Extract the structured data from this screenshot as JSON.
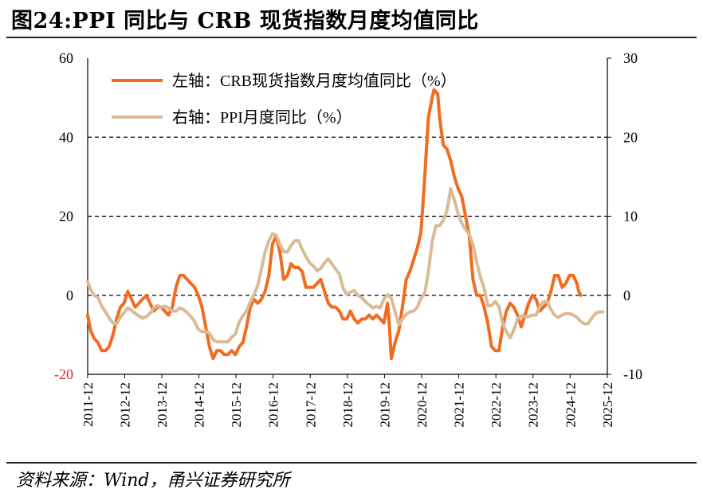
{
  "title": "图24:PPI 同比与 CRB 现货指数月度均值同比",
  "source": "资料来源：Wind，甬兴证券研究所",
  "colors": {
    "crb": "#F26B21",
    "ppi": "#D9BC97",
    "neg_tick": "#D9242B",
    "grid": "#000000"
  },
  "chart_data": {
    "type": "line",
    "title": "图24:PPI 同比与 CRB 现货指数月度均值同比",
    "x_ticks": [
      "2011-12",
      "2012-12",
      "2013-12",
      "2014-12",
      "2015-12",
      "2016-12",
      "2017-12",
      "2018-12",
      "2019-12",
      "2020-12",
      "2021-12",
      "2022-12",
      "2023-12",
      "2024-12",
      "2025-12"
    ],
    "y_left": {
      "min": -20,
      "max": 60,
      "ticks": [
        "60",
        "40",
        "20",
        "0",
        "-20"
      ]
    },
    "y_right": {
      "min": -10,
      "max": 30,
      "ticks": [
        "30",
        "20",
        "10",
        "0",
        "-10"
      ]
    },
    "grid": "dashed horizontal at left-axis 40, 20, 0",
    "legend_position": "top-left",
    "series": [
      {
        "name": "左轴：CRB现货指数月度均值同比（%）",
        "axis": "left",
        "color": "#F26B21",
        "points": [
          [
            2011.92,
            -5
          ],
          [
            2012.0,
            -9
          ],
          [
            2012.1,
            -11
          ],
          [
            2012.2,
            -12
          ],
          [
            2012.3,
            -14
          ],
          [
            2012.4,
            -14
          ],
          [
            2012.5,
            -13
          ],
          [
            2012.6,
            -10
          ],
          [
            2012.7,
            -6
          ],
          [
            2012.8,
            -3
          ],
          [
            2012.9,
            -2
          ],
          [
            2013.0,
            1
          ],
          [
            2013.1,
            -1
          ],
          [
            2013.2,
            -3
          ],
          [
            2013.3,
            -2
          ],
          [
            2013.4,
            -1
          ],
          [
            2013.5,
            0
          ],
          [
            2013.6,
            -2
          ],
          [
            2013.7,
            -4
          ],
          [
            2013.8,
            -3
          ],
          [
            2013.9,
            -3
          ],
          [
            2014.0,
            -4
          ],
          [
            2014.1,
            -5
          ],
          [
            2014.2,
            -3
          ],
          [
            2014.3,
            2
          ],
          [
            2014.4,
            5
          ],
          [
            2014.5,
            5
          ],
          [
            2014.6,
            4
          ],
          [
            2014.7,
            3
          ],
          [
            2014.8,
            2
          ],
          [
            2014.9,
            0
          ],
          [
            2015.0,
            -3
          ],
          [
            2015.1,
            -8
          ],
          [
            2015.2,
            -13
          ],
          [
            2015.3,
            -16
          ],
          [
            2015.4,
            -14
          ],
          [
            2015.5,
            -14
          ],
          [
            2015.6,
            -15
          ],
          [
            2015.7,
            -15
          ],
          [
            2015.8,
            -14
          ],
          [
            2015.9,
            -15
          ],
          [
            2016.0,
            -13
          ],
          [
            2016.1,
            -12
          ],
          [
            2016.2,
            -8
          ],
          [
            2016.3,
            -3
          ],
          [
            2016.4,
            -1
          ],
          [
            2016.5,
            -2
          ],
          [
            2016.6,
            -1
          ],
          [
            2016.7,
            1
          ],
          [
            2016.8,
            5
          ],
          [
            2016.9,
            13
          ],
          [
            2017.0,
            15
          ],
          [
            2017.1,
            11
          ],
          [
            2017.2,
            4
          ],
          [
            2017.3,
            5
          ],
          [
            2017.4,
            8
          ],
          [
            2017.5,
            7
          ],
          [
            2017.6,
            7
          ],
          [
            2017.7,
            6
          ],
          [
            2017.8,
            2
          ],
          [
            2017.9,
            2
          ],
          [
            2018.0,
            2
          ],
          [
            2018.1,
            3
          ],
          [
            2018.2,
            4
          ],
          [
            2018.3,
            1
          ],
          [
            2018.4,
            -2
          ],
          [
            2018.5,
            -3
          ],
          [
            2018.6,
            -3
          ],
          [
            2018.7,
            -4
          ],
          [
            2018.8,
            -6
          ],
          [
            2018.9,
            -6
          ],
          [
            2019.0,
            -4
          ],
          [
            2019.1,
            -6
          ],
          [
            2019.2,
            -7
          ],
          [
            2019.3,
            -6
          ],
          [
            2019.4,
            -6
          ],
          [
            2019.5,
            -5
          ],
          [
            2019.6,
            -6
          ],
          [
            2019.7,
            -5
          ],
          [
            2019.8,
            -6
          ],
          [
            2019.9,
            -7
          ],
          [
            2020.0,
            -2
          ],
          [
            2020.05,
            -8
          ],
          [
            2020.1,
            -16
          ],
          [
            2020.2,
            -12
          ],
          [
            2020.3,
            -9
          ],
          [
            2020.4,
            -3
          ],
          [
            2020.5,
            4
          ],
          [
            2020.6,
            6
          ],
          [
            2020.7,
            9
          ],
          [
            2020.8,
            12
          ],
          [
            2020.9,
            16
          ],
          [
            2021.0,
            30
          ],
          [
            2021.1,
            45
          ],
          [
            2021.2,
            50
          ],
          [
            2021.25,
            52
          ],
          [
            2021.35,
            51
          ],
          [
            2021.4,
            45
          ],
          [
            2021.5,
            38
          ],
          [
            2021.6,
            37
          ],
          [
            2021.7,
            34
          ],
          [
            2021.8,
            30
          ],
          [
            2021.9,
            27
          ],
          [
            2022.0,
            25
          ],
          [
            2022.1,
            20
          ],
          [
            2022.2,
            15
          ],
          [
            2022.3,
            4
          ],
          [
            2022.4,
            0
          ],
          [
            2022.5,
            0
          ],
          [
            2022.6,
            -3
          ],
          [
            2022.7,
            -7
          ],
          [
            2022.8,
            -13
          ],
          [
            2022.9,
            -14
          ],
          [
            2023.0,
            -14
          ],
          [
            2023.1,
            -8
          ],
          [
            2023.2,
            -4
          ],
          [
            2023.3,
            -2
          ],
          [
            2023.4,
            -3
          ],
          [
            2023.5,
            -5
          ],
          [
            2023.6,
            -8
          ],
          [
            2023.7,
            -5
          ],
          [
            2023.8,
            -2
          ],
          [
            2023.9,
            0
          ],
          [
            2024.0,
            -1
          ],
          [
            2024.1,
            -4
          ],
          [
            2024.2,
            -3
          ],
          [
            2024.3,
            -2
          ],
          [
            2024.4,
            1
          ],
          [
            2024.5,
            5
          ],
          [
            2024.6,
            5
          ],
          [
            2024.7,
            2
          ],
          [
            2024.8,
            3
          ],
          [
            2024.9,
            5
          ],
          [
            2025.0,
            5
          ],
          [
            2025.1,
            3
          ],
          [
            2025.15,
            1
          ],
          [
            2025.2,
            0
          ]
        ]
      },
      {
        "name": "右轴：PPI月度同比（%）",
        "axis": "right",
        "color": "#D9BC97",
        "points": [
          [
            2011.92,
            1.7
          ],
          [
            2012.0,
            0.7
          ],
          [
            2012.1,
            0
          ],
          [
            2012.2,
            -0.3
          ],
          [
            2012.3,
            -1.4
          ],
          [
            2012.4,
            -2.1
          ],
          [
            2012.5,
            -2.9
          ],
          [
            2012.6,
            -3.5
          ],
          [
            2012.7,
            -3.6
          ],
          [
            2012.8,
            -2.8
          ],
          [
            2012.9,
            -2.2
          ],
          [
            2013.0,
            -1.6
          ],
          [
            2013.1,
            -1.9
          ],
          [
            2013.2,
            -2.3
          ],
          [
            2013.3,
            -2.6
          ],
          [
            2013.4,
            -2.9
          ],
          [
            2013.5,
            -2.7
          ],
          [
            2013.6,
            -2.3
          ],
          [
            2013.7,
            -1.6
          ],
          [
            2013.8,
            -1.3
          ],
          [
            2013.9,
            -1.5
          ],
          [
            2014.0,
            -1.4
          ],
          [
            2014.1,
            -1.6
          ],
          [
            2014.2,
            -2.0
          ],
          [
            2014.3,
            -2.0
          ],
          [
            2014.4,
            -1.6
          ],
          [
            2014.5,
            -1.8
          ],
          [
            2014.6,
            -2.2
          ],
          [
            2014.7,
            -2.7
          ],
          [
            2014.8,
            -3.3
          ],
          [
            2014.9,
            -4.3
          ],
          [
            2015.0,
            -4.6
          ],
          [
            2015.1,
            -4.6
          ],
          [
            2015.2,
            -4.8
          ],
          [
            2015.3,
            -5.6
          ],
          [
            2015.4,
            -5.9
          ],
          [
            2015.5,
            -5.9
          ],
          [
            2015.6,
            -5.9
          ],
          [
            2015.7,
            -5.9
          ],
          [
            2015.8,
            -5.3
          ],
          [
            2015.9,
            -4.9
          ],
          [
            2016.0,
            -3.4
          ],
          [
            2016.1,
            -2.6
          ],
          [
            2016.2,
            -2.0
          ],
          [
            2016.3,
            -0.8
          ],
          [
            2016.4,
            0.1
          ],
          [
            2016.5,
            1.2
          ],
          [
            2016.6,
            3.3
          ],
          [
            2016.7,
            5.5
          ],
          [
            2016.8,
            6.9
          ],
          [
            2016.9,
            7.8
          ],
          [
            2017.0,
            7.6
          ],
          [
            2017.1,
            6.4
          ],
          [
            2017.2,
            5.5
          ],
          [
            2017.3,
            5.5
          ],
          [
            2017.4,
            6.3
          ],
          [
            2017.5,
            6.9
          ],
          [
            2017.6,
            6.9
          ],
          [
            2017.7,
            5.8
          ],
          [
            2017.8,
            4.9
          ],
          [
            2017.9,
            4.1
          ],
          [
            2018.0,
            3.7
          ],
          [
            2018.1,
            3.1
          ],
          [
            2018.2,
            3.4
          ],
          [
            2018.3,
            4.1
          ],
          [
            2018.4,
            4.6
          ],
          [
            2018.5,
            4.0
          ],
          [
            2018.6,
            3.3
          ],
          [
            2018.7,
            2.7
          ],
          [
            2018.8,
            0.9
          ],
          [
            2018.9,
            0.1
          ],
          [
            2019.0,
            0.4
          ],
          [
            2019.1,
            0.6
          ],
          [
            2019.2,
            0.0
          ],
          [
            2019.3,
            -0.3
          ],
          [
            2019.4,
            -0.8
          ],
          [
            2019.5,
            -1.2
          ],
          [
            2019.6,
            -1.6
          ],
          [
            2019.7,
            -1.4
          ],
          [
            2019.8,
            -1.6
          ],
          [
            2019.9,
            -0.5
          ],
          [
            2020.0,
            0.1
          ],
          [
            2020.1,
            -0.4
          ],
          [
            2020.2,
            -2.0
          ],
          [
            2020.3,
            -3.7
          ],
          [
            2020.4,
            -3.0
          ],
          [
            2020.5,
            -2.4
          ],
          [
            2020.6,
            -2.1
          ],
          [
            2020.7,
            -2.0
          ],
          [
            2020.8,
            -1.5
          ],
          [
            2020.9,
            -0.4
          ],
          [
            2021.0,
            0.3
          ],
          [
            2021.1,
            3.0
          ],
          [
            2021.2,
            6.8
          ],
          [
            2021.3,
            8.8
          ],
          [
            2021.4,
            8.8
          ],
          [
            2021.5,
            9.5
          ],
          [
            2021.6,
            10.7
          ],
          [
            2021.7,
            13.5
          ],
          [
            2021.8,
            12.0
          ],
          [
            2021.9,
            10.3
          ],
          [
            2022.0,
            9.1
          ],
          [
            2022.1,
            8.3
          ],
          [
            2022.2,
            7.7
          ],
          [
            2022.3,
            6.4
          ],
          [
            2022.4,
            4.2
          ],
          [
            2022.5,
            2.3
          ],
          [
            2022.6,
            0.9
          ],
          [
            2022.7,
            -1.3
          ],
          [
            2022.8,
            -1.3
          ],
          [
            2022.9,
            -0.8
          ],
          [
            2023.0,
            -1.4
          ],
          [
            2023.1,
            -3.6
          ],
          [
            2023.2,
            -4.6
          ],
          [
            2023.3,
            -5.4
          ],
          [
            2023.4,
            -4.4
          ],
          [
            2023.5,
            -3.0
          ],
          [
            2023.6,
            -2.6
          ],
          [
            2023.7,
            -2.7
          ],
          [
            2023.8,
            -2.7
          ],
          [
            2023.9,
            -2.5
          ],
          [
            2024.0,
            -2.5
          ],
          [
            2024.1,
            -1.4
          ],
          [
            2024.2,
            -0.8
          ],
          [
            2024.3,
            -0.8
          ],
          [
            2024.4,
            -1.8
          ],
          [
            2024.5,
            -2.5
          ],
          [
            2024.6,
            -2.8
          ],
          [
            2024.7,
            -2.5
          ],
          [
            2024.8,
            -2.3
          ],
          [
            2024.9,
            -2.3
          ],
          [
            2025.0,
            -2.5
          ],
          [
            2025.1,
            -2.8
          ],
          [
            2025.2,
            -3.3
          ],
          [
            2025.3,
            -3.6
          ],
          [
            2025.4,
            -3.6
          ],
          [
            2025.5,
            -2.9
          ],
          [
            2025.6,
            -2.3
          ],
          [
            2025.7,
            -2.1
          ],
          [
            2025.8,
            -2.1
          ]
        ]
      }
    ]
  }
}
